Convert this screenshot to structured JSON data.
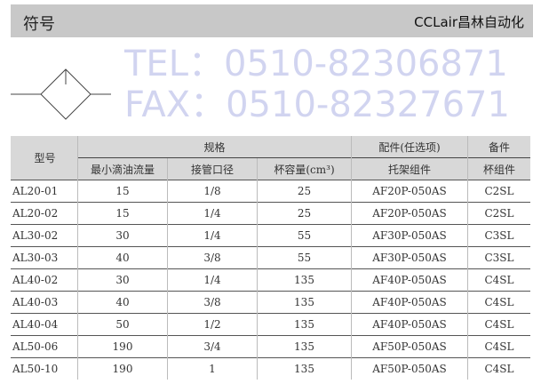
{
  "section_title": "符号",
  "table": {
    "header_row1": [
      "型号",
      "规格",
      "配件(任选项)",
      "备件"
    ],
    "header_row2": [
      "最小滴油流量",
      "接管口径",
      "杯容量(cm³)",
      "托架组件",
      "杯组件"
    ],
    "rows": [
      [
        "AL20-01",
        "15",
        "1/8",
        "25",
        "AF20P-050AS",
        "C2SL"
      ],
      [
        "AL20-02",
        "15",
        "1/4",
        "25",
        "AF20P-050AS",
        "C2SL"
      ],
      [
        "AL30-02",
        "30",
        "1/4",
        "55",
        "AF30P-050AS",
        "C3SL"
      ],
      [
        "AL30-03",
        "40",
        "3/8",
        "55",
        "AF30P-050AS",
        "C3SL"
      ],
      [
        "AL40-02",
        "30",
        "1/4",
        "135",
        "AF40P-050AS",
        "C4SL"
      ],
      [
        "AL40-03",
        "40",
        "3/8",
        "135",
        "AF40P-050AS",
        "C4SL"
      ],
      [
        "AL40-04",
        "50",
        "1/2",
        "135",
        "AF40P-050AS",
        "C4SL"
      ],
      [
        "AL50-06",
        "190",
        "3/4",
        "135",
        "AF50P-050AS",
        "C4SL"
      ],
      [
        "AL50-10",
        "190",
        "1",
        "135",
        "AF50P-050AS",
        "C4SL"
      ]
    ]
  },
  "watermark": {
    "tel": "TEL：0510-82306871",
    "fax": "FAX：0510-82327671"
  },
  "logo": "CCLair昌林自动化"
}
